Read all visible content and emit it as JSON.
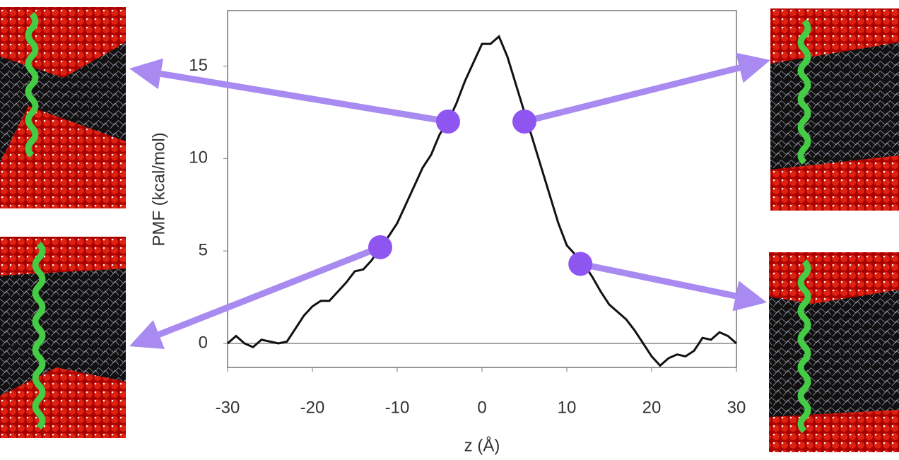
{
  "chart_data": {
    "type": "line",
    "xlabel": "z (Å)",
    "ylabel": "PMF (kcal/mol)",
    "x": [
      -30,
      -29,
      -28,
      -27,
      -26,
      -25,
      -24,
      -23,
      -22,
      -21,
      -20,
      -19,
      -18,
      -17,
      -16,
      -15,
      -14,
      -13,
      -12,
      -11,
      -10,
      -9,
      -8,
      -7,
      -6,
      -5,
      -4,
      -3,
      -2,
      -1,
      0,
      1,
      2,
      3,
      4,
      5,
      6,
      7,
      8,
      9,
      10,
      11,
      12,
      13,
      14,
      15,
      16,
      17,
      18,
      19,
      20,
      21,
      22,
      23,
      24,
      25,
      26,
      27,
      28,
      29,
      30
    ],
    "series": [
      {
        "color": "#111111",
        "values": [
          0,
          0.4,
          0,
          -0.2,
          0.2,
          0.1,
          0,
          0.1,
          0.8,
          1.5,
          2,
          2.3,
          2.3,
          2.8,
          3.3,
          3.9,
          4,
          4.5,
          5.2,
          5.8,
          6.5,
          7.5,
          8.5,
          9.5,
          10.2,
          11.3,
          12,
          13,
          14.2,
          15.2,
          16.2,
          16.2,
          16.6,
          15.5,
          14,
          12.5,
          11,
          9.5,
          8,
          6.5,
          5.3,
          4.8,
          4.3,
          3.6,
          2.8,
          2.1,
          1.7,
          1.3,
          0.7,
          0,
          -0.7,
          -1.2,
          -0.8,
          -0.6,
          -0.7,
          -0.4,
          0.3,
          0.2,
          0.6,
          0.4,
          0
        ]
      }
    ],
    "points": {
      "color": "#8f55f0",
      "x": [
        -4,
        5,
        -12,
        11.6
      ],
      "y": [
        12,
        12,
        5.2,
        4.3
      ]
    },
    "reference_line": 0,
    "xlim": [
      -30,
      30
    ],
    "xticks": [
      -30,
      -20,
      -10,
      0,
      10,
      20,
      30
    ],
    "ylim": [
      -1.3,
      18
    ],
    "yticks": [
      0,
      5,
      10,
      15
    ]
  }
}
